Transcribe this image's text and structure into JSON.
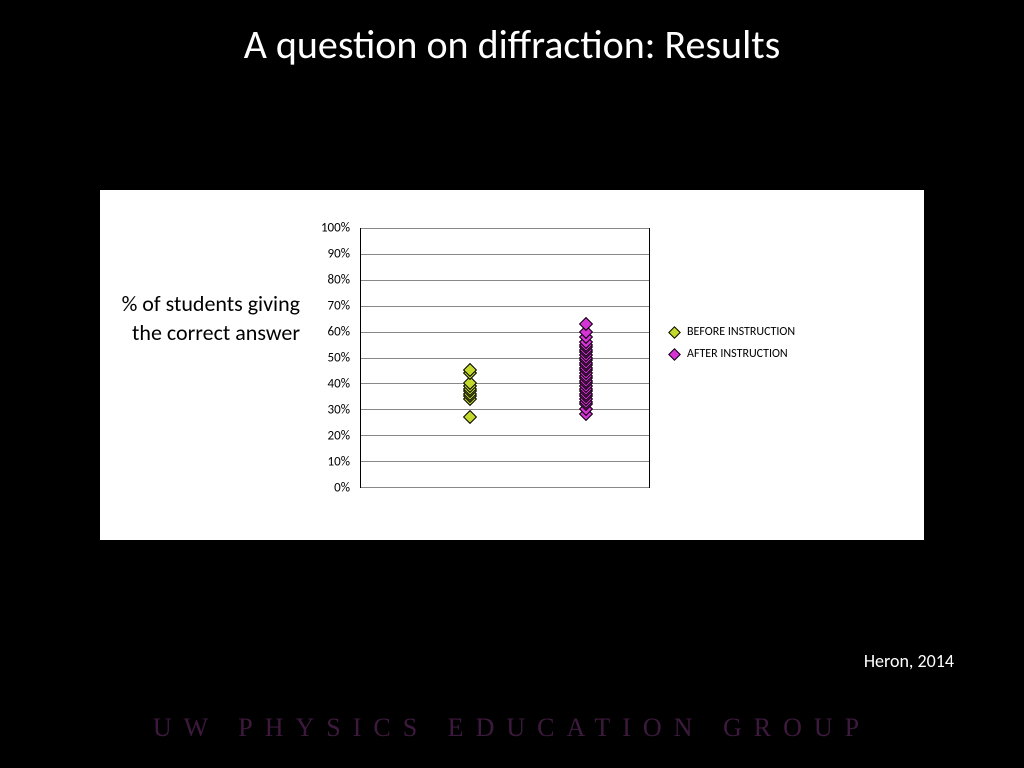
{
  "title": "A question on diffraction: Results",
  "ylabel": "% of students giving the correct answer",
  "citation": "Heron, 2014",
  "footer": "UW PHYSICS EDUCATION GROUP",
  "chart": {
    "type": "scatter",
    "background_color": "#ffffff",
    "grid_color": "#888888",
    "ylim": [
      0,
      100
    ],
    "ytick_step": 10,
    "ytick_suffix": "%",
    "label_fontsize": 22,
    "tick_fontsize": 13,
    "series": [
      {
        "name": "BEFORE INSTRUCTION",
        "color": "#c4d92e",
        "marker": "diamond",
        "x_frac": 0.38,
        "values": [
          27,
          34,
          35,
          36,
          37,
          38,
          39,
          40,
          44,
          45
        ]
      },
      {
        "name": "AFTER INSTRUCTION",
        "color": "#d633d6",
        "marker": "diamond",
        "x_frac": 0.78,
        "values": [
          28,
          30,
          32,
          33,
          34,
          35,
          36,
          37,
          38,
          39,
          40,
          41,
          42,
          43,
          44,
          45,
          46,
          47,
          48,
          49,
          50,
          51,
          52,
          53,
          54,
          55,
          56,
          58,
          60,
          63
        ]
      }
    ]
  },
  "legend": {
    "items": [
      {
        "label": "BEFORE INSTRUCTION",
        "color": "#c4d92e"
      },
      {
        "label": "AFTER INSTRUCTION",
        "color": "#d633d6"
      }
    ]
  }
}
